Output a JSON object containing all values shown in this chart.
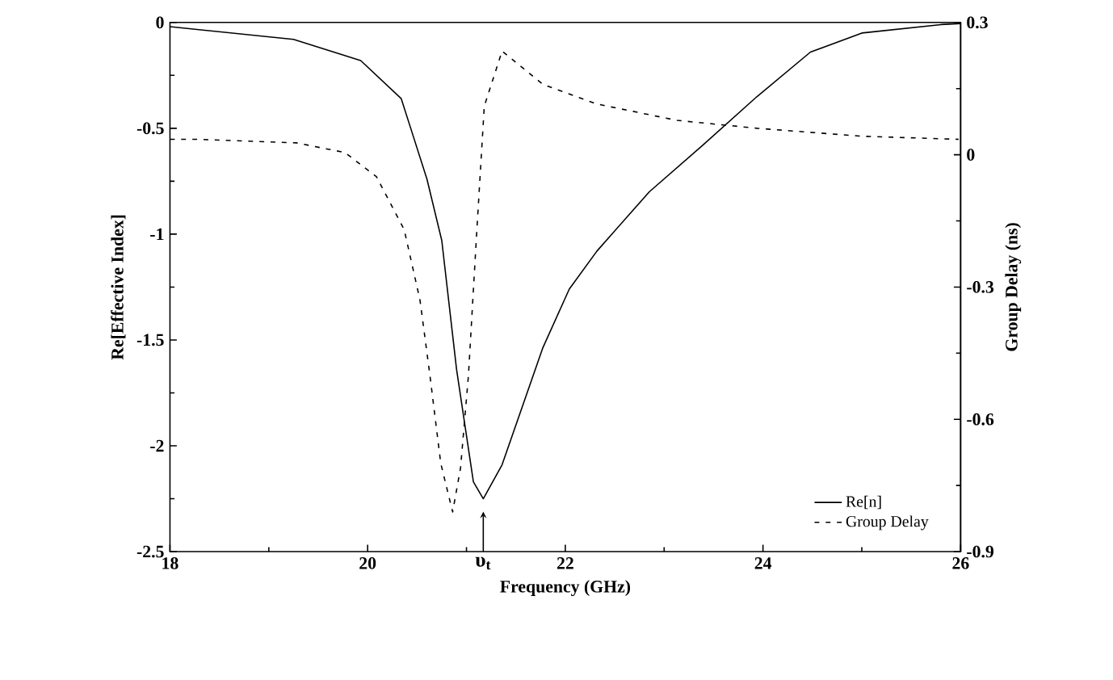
{
  "chart_data": {
    "type": "line",
    "xlabel": "Frequency (GHz)",
    "ylabel": "Re[Effective Index]",
    "y2label": "Group Delay (ns)",
    "xlim": [
      18,
      26
    ],
    "xticks": [
      18,
      20,
      22,
      24,
      26
    ],
    "ylim": [
      -2.5,
      0
    ],
    "yticks": [
      -2.5,
      -2,
      -1.5,
      -1,
      -0.5,
      0
    ],
    "y2lim": [
      -0.9,
      0.3
    ],
    "y2ticks": [
      -0.9,
      -0.6,
      -0.3,
      0,
      0.3
    ],
    "legend": "bottom right",
    "marker": "none",
    "series": [
      {
        "name": "Re[n]",
        "color": "#000000",
        "axis": "y",
        "line_style": "solid",
        "x": [
          18,
          19.25,
          19.93,
          20.34,
          20.6,
          20.75,
          20.9,
          21.07,
          21.17,
          21.36,
          21.77,
          22.04,
          22.32,
          22.85,
          23.39,
          23.94,
          24.48,
          25.0,
          25.8,
          26
        ],
        "values": [
          -0.02,
          -0.08,
          -0.18,
          -0.36,
          -0.74,
          -1.03,
          -1.64,
          -2.17,
          -2.25,
          -2.09,
          -1.54,
          -1.26,
          -1.08,
          -0.8,
          -0.58,
          -0.35,
          -0.14,
          -0.05,
          -0.01,
          -0.005
        ]
      },
      {
        "name": "Group Delay",
        "color": "#000000",
        "axis": "y2",
        "line_style": "dashed",
        "x": [
          18,
          18.26,
          19.28,
          19.77,
          20.09,
          20.37,
          20.53,
          20.63,
          20.74,
          20.86,
          20.94,
          21.02,
          21.1,
          21.18,
          21.36,
          21.77,
          22.32,
          23.13,
          23.94,
          25.0,
          25.98
        ],
        "values": [
          0.035,
          0.035,
          0.027,
          0.005,
          -0.05,
          -0.17,
          -0.33,
          -0.5,
          -0.7,
          -0.81,
          -0.71,
          -0.5,
          -0.19,
          0.11,
          0.235,
          0.16,
          0.115,
          0.078,
          0.06,
          0.042,
          0.035
        ]
      }
    ],
    "annotations": [
      {
        "text": "υ$_{t}$",
        "x": 21.17,
        "y": -2.25
      }
    ]
  }
}
